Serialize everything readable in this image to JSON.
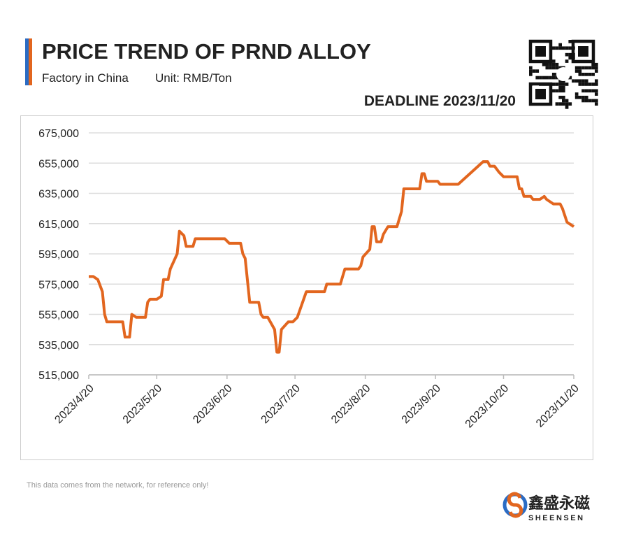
{
  "title": "PRICE TREND OF PRND ALLOY",
  "subtitle": "Factory in China",
  "unit": "Unit: RMB/Ton",
  "deadline": "DEADLINE 2023/11/20",
  "footnote": "This data comes from the network, for reference only!",
  "brand": {
    "name": "鑫盛永磁",
    "latin": "SHEENSEN"
  },
  "chart_data": {
    "type": "line",
    "x": [
      "2023/4/20",
      "2023/4/22",
      "2023/4/24",
      "2023/4/26",
      "2023/4/27",
      "2023/4/28",
      "2023/5/5",
      "2023/5/6",
      "2023/5/8",
      "2023/5/9",
      "2023/5/11",
      "2023/5/15",
      "2023/5/16",
      "2023/5/17",
      "2023/5/20",
      "2023/5/22",
      "2023/5/23",
      "2023/5/25",
      "2023/5/26",
      "2023/5/29",
      "2023/5/30",
      "2023/6/1",
      "2023/6/2",
      "2023/6/5",
      "2023/6/6",
      "2023/6/19",
      "2023/6/21",
      "2023/6/26",
      "2023/6/27",
      "2023/6/28",
      "2023/6/30",
      "2023/7/4",
      "2023/7/5",
      "2023/7/6",
      "2023/7/8",
      "2023/7/11",
      "2023/7/12",
      "2023/7/13",
      "2023/7/14",
      "2023/7/17",
      "2023/7/19",
      "2023/7/21",
      "2023/7/25",
      "2023/8/2",
      "2023/8/3",
      "2023/8/9",
      "2023/8/10",
      "2023/8/11",
      "2023/8/17",
      "2023/8/18",
      "2023/8/19",
      "2023/8/22",
      "2023/8/23",
      "2023/8/24",
      "2023/8/25",
      "2023/8/27",
      "2023/8/28",
      "2023/8/30",
      "2023/9/3",
      "2023/9/5",
      "2023/9/6",
      "2023/9/13",
      "2023/9/14",
      "2023/9/15",
      "2023/9/16",
      "2023/9/21",
      "2023/9/22",
      "2023/9/30",
      "2023/10/11",
      "2023/10/13",
      "2023/10/14",
      "2023/10/16",
      "2023/10/18",
      "2023/10/20",
      "2023/10/26",
      "2023/10/27",
      "2023/10/28",
      "2023/10/29",
      "2023/11/1",
      "2023/11/2",
      "2023/11/5",
      "2023/11/7",
      "2023/11/8",
      "2023/11/11",
      "2023/11/14",
      "2023/11/15",
      "2023/11/17",
      "2023/11/18",
      "2023/11/20"
    ],
    "series": [
      {
        "color": "#e2661f",
        "values": [
          580000,
          580000,
          578000,
          570000,
          555000,
          550000,
          550000,
          540000,
          540000,
          555000,
          553000,
          553000,
          563000,
          565000,
          565000,
          567000,
          578000,
          578000,
          585000,
          595000,
          610000,
          607000,
          600000,
          600000,
          605000,
          605000,
          602000,
          602000,
          595000,
          592000,
          563000,
          563000,
          555000,
          553000,
          553000,
          545000,
          530000,
          530000,
          545000,
          550000,
          550000,
          553000,
          570000,
          570000,
          575000,
          575000,
          580000,
          585000,
          585000,
          587000,
          593000,
          598000,
          613000,
          613000,
          603000,
          603000,
          608000,
          613000,
          613000,
          623000,
          638000,
          638000,
          648000,
          648000,
          643000,
          643000,
          641000,
          641000,
          656000,
          656000,
          653000,
          653000,
          649000,
          646000,
          646000,
          638000,
          638000,
          633000,
          633000,
          631000,
          631000,
          633000,
          631000,
          628000,
          628000,
          625000,
          616000,
          615000,
          613000
        ]
      }
    ],
    "xlim": [
      "2023/4/20",
      "2023/11/20"
    ],
    "xticks": [
      "2023/4/20",
      "2023/5/20",
      "2023/6/20",
      "2023/7/20",
      "2023/8/20",
      "2023/9/20",
      "2023/10/20",
      "2023/11/20"
    ],
    "ylim": [
      515000,
      675000
    ],
    "yticks": [
      {
        "value": 515000,
        "label": "515,000"
      },
      {
        "value": 535000,
        "label": "535,000"
      },
      {
        "value": 555000,
        "label": "555,000"
      },
      {
        "value": 575000,
        "label": "575,000"
      },
      {
        "value": 595000,
        "label": "595,000"
      },
      {
        "value": 615000,
        "label": "615,000"
      },
      {
        "value": 635000,
        "label": "635,000"
      },
      {
        "value": 655000,
        "label": "655,000"
      },
      {
        "value": 675000,
        "label": "675,000"
      }
    ],
    "grid": true
  }
}
